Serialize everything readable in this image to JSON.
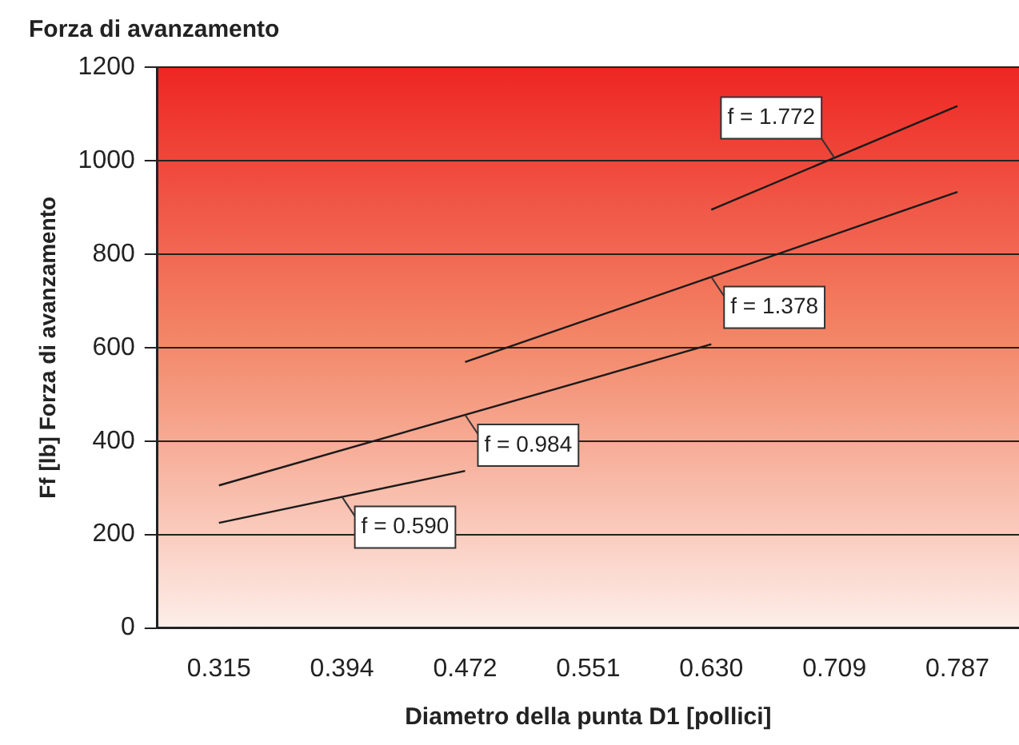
{
  "chart_data": {
    "type": "line",
    "title": "Forza di avanzamento",
    "xlabel": "Diametro della punta D1 [pollici]",
    "ylabel": "Ff [lb] Forza di avanzamento",
    "categories": [
      "0.315",
      "0.394",
      "0.472",
      "0.551",
      "0.630",
      "0.709",
      "0.787"
    ],
    "series": [
      {
        "name": "f = 0.590",
        "color": "#1a1a1a",
        "values": [
          225,
          null,
          336,
          null,
          null,
          null,
          null
        ]
      },
      {
        "name": "f = 0.984",
        "color": "#1a1a1a",
        "values": [
          305,
          null,
          null,
          null,
          607,
          null,
          null
        ]
      },
      {
        "name": "f = 1.378",
        "color": "#1a1a1a",
        "values": [
          null,
          null,
          569,
          null,
          null,
          null,
          933
        ]
      },
      {
        "name": "f = 1.772",
        "color": "#1a1a1a",
        "values": [
          null,
          null,
          null,
          null,
          895,
          null,
          1117
        ]
      }
    ],
    "ylim": [
      0,
      1200
    ],
    "yticks": [
      0,
      200,
      400,
      600,
      800,
      1000,
      1200
    ],
    "grid": "y",
    "legend": false,
    "marker": "none",
    "line_style": "solid"
  }
}
